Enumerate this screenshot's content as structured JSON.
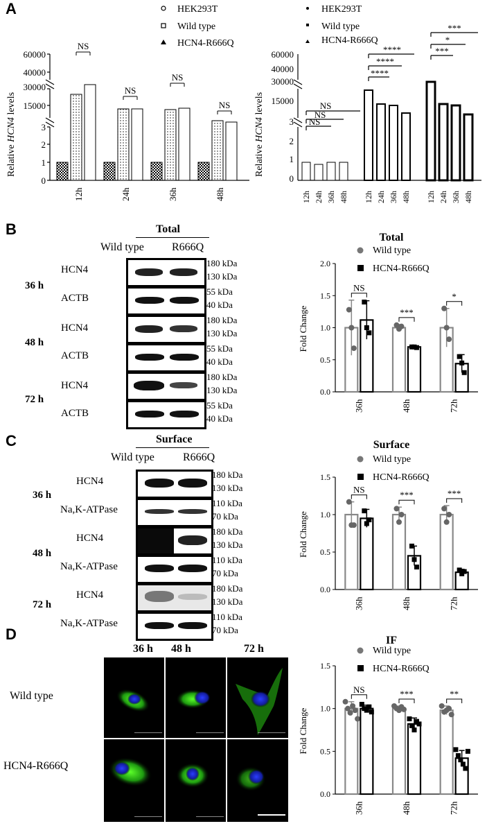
{
  "panel_letters": [
    "A",
    "B",
    "C",
    "D"
  ],
  "A": {
    "legend": [
      "HEK293T",
      "Wild type",
      "HCN4-R666Q"
    ],
    "ylabel_prefix": "Relative ",
    "ylabel_gene": "HCN4",
    "ylabel_suffix": " levels",
    "left_chart": {
      "type": "bar",
      "categories": [
        "12h",
        "24h",
        "36h",
        "48h"
      ],
      "y_ticks_top": [
        "60000",
        "40000",
        "30000",
        "15000"
      ],
      "y_ticks_bottom": [
        "3",
        "2",
        "1",
        "0"
      ],
      "series": [
        {
          "name": "HEK293T",
          "values": [
            1.0,
            1.0,
            1.0,
            1.0
          ]
        },
        {
          "name": "Wild type",
          "values": [
            20000,
            10500,
            10000,
            8000
          ]
        },
        {
          "name": "HCN4-R666Q",
          "values": [
            30000,
            10200,
            10500,
            7500
          ]
        }
      ],
      "annotations": [
        "NS",
        "NS",
        "NS",
        "NS"
      ]
    },
    "right_chart": {
      "type": "bar",
      "categories": [
        "12h",
        "24h",
        "36h",
        "48h",
        "12h",
        "24h",
        "36h",
        "48h",
        "12h",
        "24h",
        "36h",
        "48h"
      ],
      "y_ticks_top": [
        "60000",
        "40000",
        "30000",
        "15000"
      ],
      "y_ticks_bottom": [
        "3",
        "2",
        "1",
        "0"
      ],
      "series": [
        {
          "name": "HEK293T",
          "values": [
            1.0,
            0.9,
            1.0,
            1.0
          ]
        },
        {
          "name": "Wild type",
          "values": [
            20000,
            10000,
            10000,
            8000
          ]
        },
        {
          "name": "HCN4-R666Q",
          "values": [
            30000,
            10000,
            10000,
            7500
          ]
        }
      ],
      "annotations": [
        "NS",
        "NS",
        "NS",
        "****",
        "****",
        "****",
        "***",
        "*",
        "***"
      ]
    }
  },
  "B": {
    "blot_title": "Total",
    "lanes": [
      "Wild type",
      "R666Q"
    ],
    "timepoints": [
      "36 h",
      "48 h",
      "72 h"
    ],
    "proteins": [
      "HCN4",
      "ACTB"
    ],
    "kda_hcn4": [
      "180 kDa",
      "130 kDa"
    ],
    "kda_actb": [
      "55 kDa",
      "40 kDa"
    ],
    "chart_title": "Total",
    "legend": [
      "Wild type",
      "HCN4-R666Q"
    ]
  },
  "C": {
    "blot_title": "Surface",
    "lanes": [
      "Wild type",
      "R666Q"
    ],
    "timepoints": [
      "36 h",
      "48 h",
      "72 h"
    ],
    "proteins": [
      "HCN4",
      "Na,K-ATPase"
    ],
    "kda_hcn4": [
      "180 kDa",
      "130 kDa"
    ],
    "kda_atp": [
      "110 kDa",
      "70 kDa"
    ],
    "chart_title": "Surface",
    "legend": [
      "Wild type",
      "HCN4-R666Q"
    ]
  },
  "D": {
    "timepoints": [
      "36 h",
      "48 h",
      "72 h"
    ],
    "rows": [
      "Wild type",
      "HCN4-R666Q"
    ],
    "chart_title": "IF",
    "legend": [
      "Wild type",
      "HCN4-R666Q"
    ]
  },
  "chart_data": [
    {
      "type": "bar",
      "title": "Total",
      "ylabel": "Fold Change",
      "categories": [
        "36h",
        "48h",
        "72h"
      ],
      "ylim": [
        0,
        2.0
      ],
      "yticks": [
        "0.0",
        "0.5",
        "1.0",
        "1.5",
        "2.0"
      ],
      "series": [
        {
          "name": "Wild type",
          "values": [
            1.0,
            1.0,
            1.0
          ],
          "errors": [
            0.43,
            0.05,
            0.3
          ],
          "points": [
            [
              1.28,
              1.0,
              0.68
            ],
            [
              1.04,
              0.98,
              1.02
            ],
            [
              1.3,
              1.0,
              0.82
            ]
          ]
        },
        {
          "name": "HCN4-R666Q",
          "values": [
            1.12,
            0.7,
            0.44
          ],
          "errors": [
            0.3,
            0.01,
            0.14
          ],
          "points": [
            [
              1.4,
              1.0,
              0.92
            ],
            [
              0.7,
              0.7,
              0.69
            ],
            [
              0.55,
              0.45,
              0.3
            ]
          ]
        }
      ],
      "significance": [
        "NS",
        "***",
        "*"
      ]
    },
    {
      "type": "bar",
      "title": "Surface",
      "ylabel": "Fold Change",
      "categories": [
        "36h",
        "48h",
        "72h"
      ],
      "ylim": [
        0,
        1.5
      ],
      "yticks": [
        "0.0",
        "0.5",
        "1.0",
        "1.5"
      ],
      "series": [
        {
          "name": "Wild type",
          "values": [
            1.0,
            1.0,
            1.0
          ],
          "errors": [
            0.17,
            0.1,
            0.12
          ],
          "points": [
            [
              1.17,
              0.86,
              0.86
            ],
            [
              1.08,
              0.9,
              1.0
            ],
            [
              1.08,
              0.9,
              1.0
            ]
          ]
        },
        {
          "name": "HCN4-R666Q",
          "values": [
            0.95,
            0.45,
            0.23
          ],
          "errors": [
            0.12,
            0.13,
            0.04
          ],
          "points": [
            [
              1.05,
              0.88,
              0.93
            ],
            [
              0.58,
              0.4,
              0.3
            ],
            [
              0.26,
              0.21,
              0.24
            ]
          ]
        }
      ],
      "significance": [
        "NS",
        "***",
        "***"
      ]
    },
    {
      "type": "bar",
      "title": "IF",
      "ylabel": "Fold Change",
      "categories": [
        "36h",
        "48h",
        "72h"
      ],
      "ylim": [
        0,
        1.5
      ],
      "yticks": [
        "0.0",
        "0.5",
        "1.0",
        "1.5"
      ],
      "series": [
        {
          "name": "Wild type",
          "values": [
            1.0,
            1.0,
            0.98
          ],
          "errors": [
            0.08,
            0.03,
            0.05
          ],
          "points": [
            [
              1.08,
              1.0,
              0.95,
              1.03,
              0.98,
              0.88
            ],
            [
              1.03,
              1.0,
              0.98,
              1.02,
              0.99
            ],
            [
              1.03,
              0.96,
              0.98,
              1.0,
              0.93
            ]
          ]
        },
        {
          "name": "HCN4-R666Q",
          "values": [
            1.0,
            0.82,
            0.42
          ],
          "errors": [
            0.04,
            0.07,
            0.09
          ],
          "points": [
            [
              1.05,
              1.0,
              0.98,
              1.02,
              0.96
            ],
            [
              0.88,
              0.8,
              0.75,
              0.85,
              0.82
            ],
            [
              0.52,
              0.45,
              0.4,
              0.35,
              0.3,
              0.5
            ]
          ]
        }
      ],
      "significance": [
        "NS",
        "***",
        "**"
      ]
    }
  ]
}
